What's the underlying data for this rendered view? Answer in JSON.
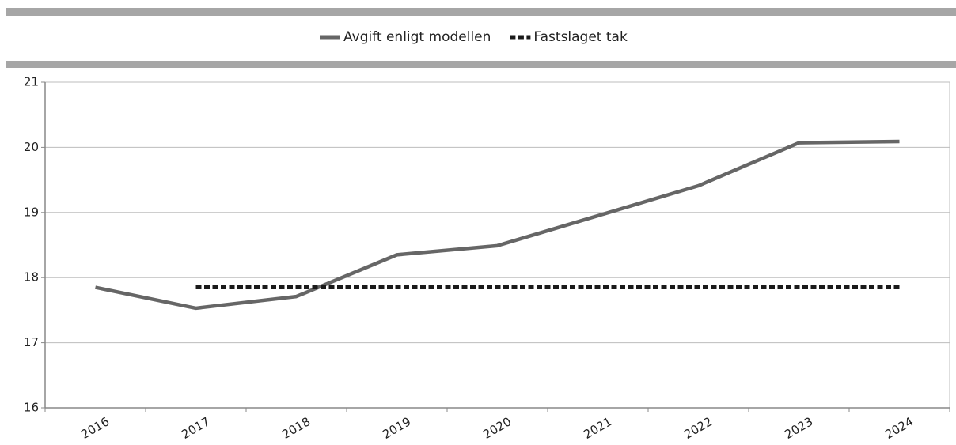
{
  "chart_data": {
    "type": "line",
    "categories": [
      "2016",
      "2017",
      "2018",
      "2019",
      "2020",
      "2021",
      "2022",
      "2023",
      "2024"
    ],
    "series": [
      {
        "name": "Avgift enligt modellen",
        "color": "#666666",
        "dash": false,
        "values": [
          17.85,
          17.53,
          17.71,
          18.35,
          18.49,
          18.95,
          19.41,
          20.07,
          20.09
        ]
      },
      {
        "name": "Fastslaget tak",
        "color": "#1a1a1a",
        "dash": true,
        "values": [
          null,
          17.85,
          17.85,
          17.85,
          17.85,
          17.85,
          17.85,
          17.85,
          17.85
        ]
      }
    ],
    "ylim": [
      16,
      21
    ],
    "yticks": [
      16,
      17,
      18,
      19,
      20,
      21
    ],
    "grid": true,
    "legend": "top"
  }
}
